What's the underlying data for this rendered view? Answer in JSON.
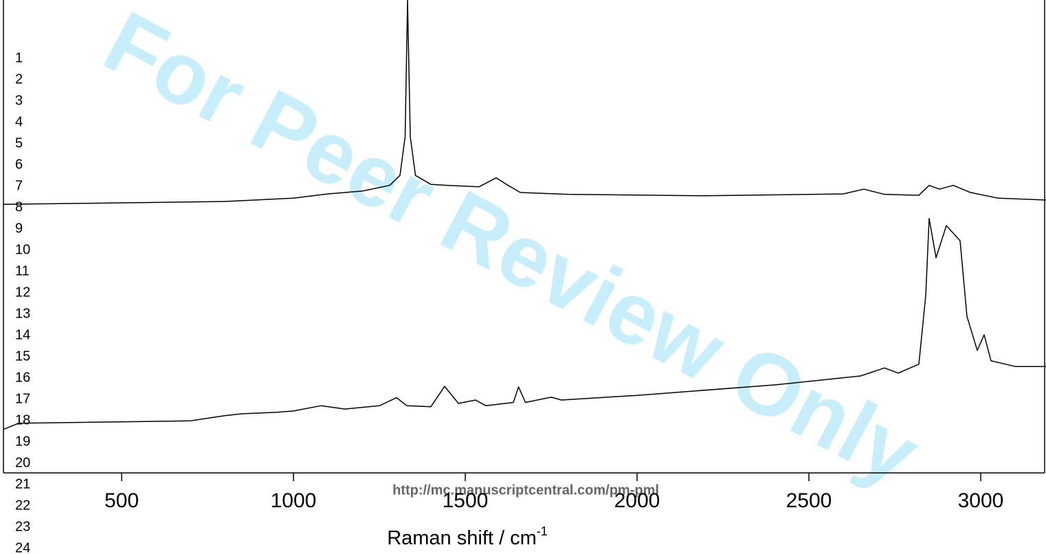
{
  "chart_data": {
    "type": "line",
    "x_label": "Raman shift / cm",
    "x_label_superscript": "-1",
    "xlim": [
      156,
      3190
    ],
    "xticks": [
      500,
      1000,
      1500,
      2000,
      2500,
      3000
    ],
    "ylim": [
      0,
      100
    ],
    "series": [
      {
        "color": "#000000",
        "x": [
          156,
          400,
          800,
          1000,
          1100,
          1200,
          1280,
          1310,
          1325,
          1332,
          1340,
          1355,
          1400,
          1450,
          1540,
          1590,
          1620,
          1660,
          1800,
          2200,
          2600,
          2660,
          2720,
          2820,
          2850,
          2880,
          2920,
          2970,
          3050,
          3190
        ],
        "values": [
          56.8,
          57.0,
          57.4,
          58.1,
          59.0,
          59.6,
          60.8,
          62.9,
          71.1,
          100,
          71.1,
          62.9,
          61.0,
          60.8,
          60.5,
          62.4,
          61.0,
          59.3,
          58.9,
          58.6,
          59.0,
          60.0,
          58.9,
          58.7,
          60.8,
          60.0,
          60.8,
          59.3,
          58.1,
          57.7
        ]
      },
      {
        "color": "#000000",
        "x": [
          156,
          200,
          700,
          800,
          850,
          950,
          1000,
          1080,
          1150,
          1250,
          1300,
          1330,
          1400,
          1440,
          1480,
          1530,
          1560,
          1640,
          1655,
          1675,
          1750,
          1780,
          2000,
          2400,
          2650,
          2720,
          2760,
          2820,
          2840,
          2850,
          2870,
          2900,
          2930,
          2940,
          2960,
          2990,
          3010,
          3030,
          3100,
          3190
        ],
        "values": [
          9.2,
          10.5,
          11.0,
          12.1,
          12.5,
          12.8,
          13.1,
          14.2,
          13.5,
          14.2,
          15.9,
          14.2,
          14.0,
          18.3,
          14.7,
          15.4,
          14.2,
          14.9,
          18.2,
          14.9,
          16.0,
          15.4,
          16.4,
          18.6,
          20.5,
          22.2,
          21.1,
          23.0,
          37.5,
          53.8,
          45.5,
          52.3,
          49.9,
          49.1,
          33.1,
          25.9,
          29.2,
          23.7,
          22.5,
          22.5
        ]
      }
    ]
  },
  "watermark": "For Peer Review Only",
  "url": "http://mc.manuscriptcentral.com/pm-pml",
  "line_numbers": [
    "1",
    "2",
    "3",
    "4",
    "5",
    "6",
    "7",
    "8",
    "9",
    "10",
    "11",
    "12",
    "13",
    "14",
    "15",
    "16",
    "17",
    "18",
    "19",
    "20",
    "21",
    "22",
    "23",
    "24"
  ]
}
